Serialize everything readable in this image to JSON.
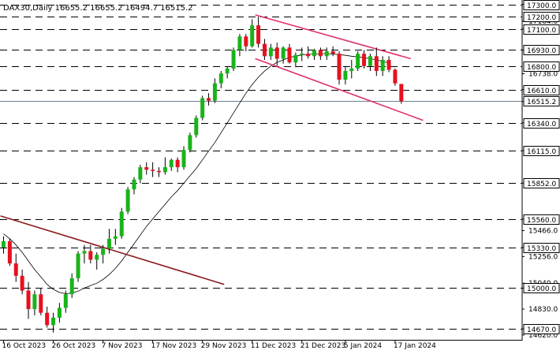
{
  "chart_data": {
    "type": "candlestick",
    "title": "DAX30,Daily  16655.2 16655.2 16494.7 16515.2",
    "symbol": "DAX30",
    "timeframe": "Daily",
    "ohlc_header": {
      "open": 16655.2,
      "high": 16655.2,
      "low": 16494.7,
      "close": 16515.2
    },
    "ylim": [
      14600,
      17310
    ],
    "price_ticks": [
      "17300.0",
      "17164.0",
      "17100.0",
      "16930.0",
      "16738.0",
      "16610.0",
      "16512.0",
      "16340.0",
      "16115.0",
      "15852.0",
      "15560.0",
      "15466.0",
      "15330.0",
      "15256.0",
      "15040.0",
      "15000.0",
      "14830.0",
      "14670.0",
      "14620.0"
    ],
    "x_ticks": [
      {
        "label": "16 Oct 2023",
        "index": 0
      },
      {
        "label": "26 Oct 2023",
        "index": 8
      },
      {
        "label": "7 Nov 2023",
        "index": 16
      },
      {
        "label": "17 Nov 2023",
        "index": 24
      },
      {
        "label": "29 Nov 2023",
        "index": 32
      },
      {
        "label": "11 Dec 2023",
        "index": 40
      },
      {
        "label": "21 Dec 2023",
        "index": 48
      },
      {
        "label": "5 Jan 2024",
        "index": 55
      },
      {
        "label": "17 Jan 2024",
        "index": 63
      }
    ],
    "levels": [
      {
        "label": "17300.0",
        "value": 17300
      },
      {
        "label": "17200.0",
        "value": 17200
      },
      {
        "label": "17100.0",
        "value": 17100
      },
      {
        "label": "16930.0",
        "value": 16930
      },
      {
        "label": "16800.0",
        "value": 16800
      },
      {
        "label": "16610.0",
        "value": 16610
      },
      {
        "label": "16340.0",
        "value": 16340
      },
      {
        "label": "16115.0",
        "value": 16115
      },
      {
        "label": "15852.0",
        "value": 15852
      },
      {
        "label": "15560.0",
        "value": 15560
      },
      {
        "label": "15330.0",
        "value": 15330
      },
      {
        "label": "15000.0",
        "value": 15000
      },
      {
        "label": "14670.0",
        "value": 14670
      }
    ],
    "current_price": {
      "label": "16515.2",
      "value": 16515.2
    },
    "candles": [
      [
        15330,
        15420,
        15280,
        15380
      ],
      [
        15380,
        15400,
        15180,
        15200
      ],
      [
        15200,
        15280,
        15050,
        15100
      ],
      [
        15100,
        15150,
        14950,
        14980
      ],
      [
        14980,
        15050,
        14750,
        14830
      ],
      [
        14830,
        14980,
        14780,
        14950
      ],
      [
        14950,
        15000,
        14780,
        14800
      ],
      [
        14800,
        14850,
        14680,
        14700
      ],
      [
        14700,
        14800,
        14640,
        14760
      ],
      [
        14760,
        14880,
        14720,
        14840
      ],
      [
        14840,
        14980,
        14800,
        14950
      ],
      [
        14950,
        15120,
        14920,
        15080
      ],
      [
        15080,
        15300,
        15050,
        15280
      ],
      [
        15280,
        15350,
        15200,
        15300
      ],
      [
        15300,
        15350,
        15200,
        15230
      ],
      [
        15230,
        15290,
        15150,
        15270
      ],
      [
        15270,
        15350,
        15200,
        15320
      ],
      [
        15320,
        15480,
        15280,
        15400
      ],
      [
        15400,
        15480,
        15350,
        15420
      ],
      [
        15420,
        15650,
        15400,
        15620
      ],
      [
        15620,
        15820,
        15600,
        15800
      ],
      [
        15800,
        15900,
        15760,
        15880
      ],
      [
        15880,
        16000,
        15850,
        15980
      ],
      [
        15980,
        16020,
        15920,
        15960
      ],
      [
        15960,
        16020,
        15900,
        15950
      ],
      [
        15950,
        15980,
        15900,
        15940
      ],
      [
        15940,
        16060,
        15920,
        15980
      ],
      [
        15980,
        16050,
        15950,
        16040
      ],
      [
        16040,
        16060,
        15940,
        15980
      ],
      [
        15980,
        16150,
        15960,
        16120
      ],
      [
        16120,
        16260,
        16100,
        16240
      ],
      [
        16240,
        16400,
        16220,
        16380
      ],
      [
        16380,
        16560,
        16360,
        16540
      ],
      [
        16540,
        16580,
        16480,
        16520
      ],
      [
        16520,
        16700,
        16500,
        16660
      ],
      [
        16660,
        16760,
        16620,
        16740
      ],
      [
        16740,
        16800,
        16700,
        16780
      ],
      [
        16780,
        16950,
        16760,
        16930
      ],
      [
        16930,
        17060,
        16880,
        17040
      ],
      [
        17040,
        17060,
        16920,
        16960
      ],
      [
        16960,
        17180,
        16950,
        17130
      ],
      [
        17130,
        17200,
        16950,
        16980
      ],
      [
        16980,
        17020,
        16850,
        16880
      ],
      [
        16880,
        16980,
        16850,
        16950
      ],
      [
        16950,
        16990,
        16800,
        16860
      ],
      [
        16860,
        16960,
        16820,
        16950
      ],
      [
        16950,
        16980,
        16820,
        16830
      ],
      [
        16830,
        16910,
        16790,
        16890
      ],
      [
        16890,
        16950,
        16840,
        16900
      ],
      [
        16900,
        16960,
        16860,
        16880
      ],
      [
        16880,
        16940,
        16850,
        16930
      ],
      [
        16930,
        16950,
        16850,
        16880
      ],
      [
        16880,
        16950,
        16850,
        16920
      ],
      [
        16920,
        16960,
        16880,
        16900
      ],
      [
        16900,
        16920,
        16650,
        16690
      ],
      [
        16690,
        16800,
        16650,
        16760
      ],
      [
        16760,
        16850,
        16700,
        16780
      ],
      [
        16780,
        16920,
        16760,
        16900
      ],
      [
        16900,
        16930,
        16780,
        16800
      ],
      [
        16800,
        16900,
        16760,
        16880
      ],
      [
        16880,
        16950,
        16720,
        16760
      ],
      [
        16760,
        16880,
        16720,
        16850
      ],
      [
        16850,
        16880,
        16750,
        16770
      ],
      [
        16770,
        16780,
        16640,
        16660
      ],
      [
        16655.2,
        16655.2,
        16494.7,
        16515.2
      ]
    ],
    "moving_average": {
      "start_index": 0,
      "values": [
        15440,
        15400,
        15350,
        15290,
        15220,
        15150,
        15090,
        15030,
        14990,
        14965,
        14955,
        14960,
        14975,
        15000,
        15020,
        15040,
        15070,
        15110,
        15160,
        15220,
        15290,
        15360,
        15430,
        15500,
        15560,
        15620,
        15680,
        15740,
        15790,
        15850,
        15910,
        15970,
        16040,
        16110,
        16180,
        16260,
        16340,
        16420,
        16500,
        16580,
        16650,
        16710,
        16760,
        16800,
        16830,
        16850,
        16870,
        16880,
        16890,
        16895,
        16898,
        16900,
        16900,
        16898,
        16893,
        16887,
        16880,
        16874,
        16868,
        16860,
        16850,
        16838,
        16824
      ]
    },
    "trendlines": [
      {
        "name": "falling-trendline",
        "color": "#8b1a1a",
        "points": [
          [
            -0.5,
            15585
          ],
          [
            35.5,
            15030
          ]
        ]
      },
      {
        "name": "channel-upper",
        "color": "#e0306a",
        "points": [
          [
            40.5,
            17215
          ],
          [
            65.5,
            16860
          ]
        ]
      },
      {
        "name": "channel-lower",
        "color": "#e0306a",
        "points": [
          [
            40.5,
            16860
          ],
          [
            67.5,
            16360
          ]
        ]
      }
    ],
    "colors": {
      "bull": "#19b319",
      "bear": "#e8101e",
      "wick": "#000000",
      "ma": "#000000",
      "level_line": "#000000",
      "current_line": "#6d7f93",
      "background": "#ffffff"
    },
    "grid": false,
    "legend": "none"
  }
}
